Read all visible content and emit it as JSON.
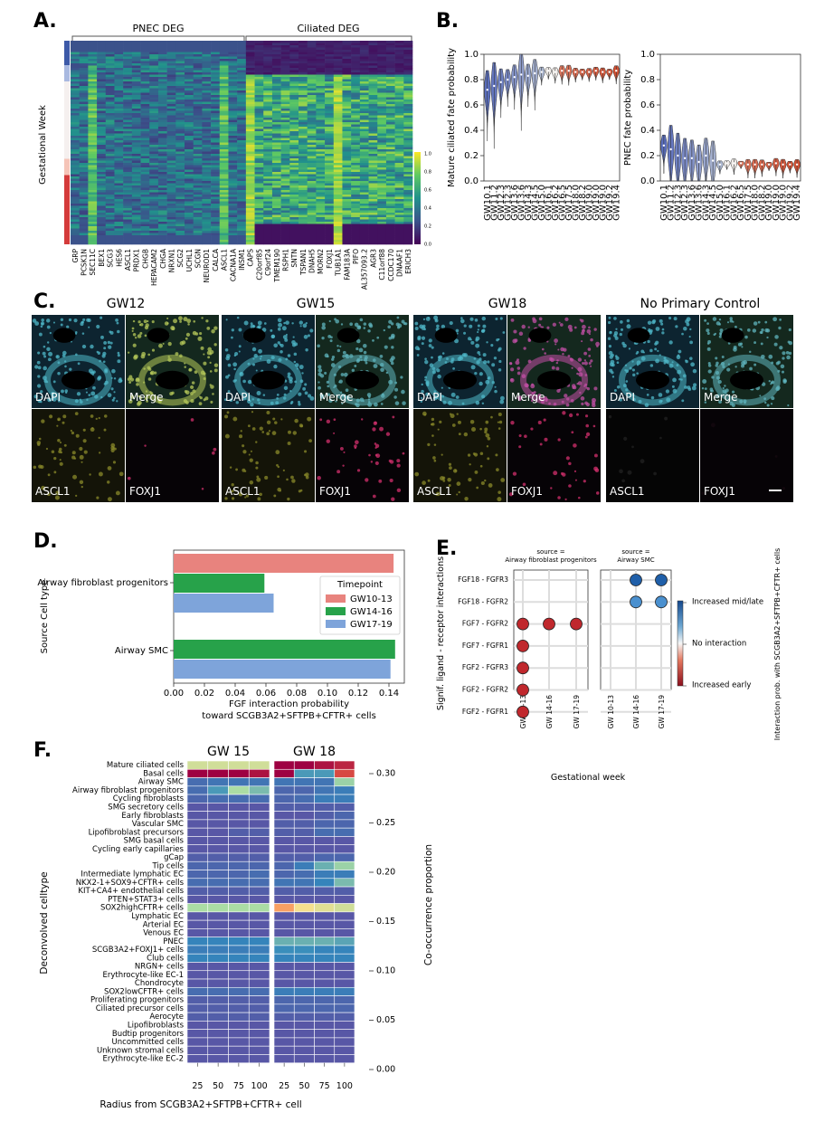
{
  "panelA": {
    "label": "A.",
    "pnec_header": "PNEC DEG",
    "ciliated_header": "Ciliated DEG",
    "ylabel": "Gestational Week",
    "genes": [
      "GRP",
      "PCSK1N",
      "SEC11C",
      "BEX1",
      "SCG3",
      "HES6",
      "ASCL1",
      "PRDX1",
      "CHGB",
      "HEPACAM2",
      "CHGA",
      "NRXN1",
      "SCG2",
      "UCHL1",
      "SCGN",
      "NEUROD1",
      "CALCA",
      "ASCL1",
      "CACNA1A",
      "INSM1",
      "CAPS",
      "C20orf85",
      "C9orf24",
      "TMEM190",
      "RSPH1",
      "SNTN",
      "TSPAN1",
      "DNAH5",
      "MORN2",
      "FOXJ1",
      "TUB1A1",
      "FAM183A",
      "PIFO",
      "AL357093.2",
      "AGR3",
      "C11orf88",
      "CCDC170",
      "DNAAF1",
      "ERICH3"
    ],
    "colorbar_ticks": [
      "1.0",
      "0.8",
      "0.6",
      "0.4",
      "0.2",
      "0.0"
    ]
  },
  "panelB": {
    "label": "B.",
    "categories": [
      "GW10.1",
      "GW11.2",
      "GW12.3",
      "GW12.3",
      "GW13.6",
      "GW13.6",
      "GW14.3",
      "GW14.5",
      "GW15.0",
      "GW16.1",
      "GW16.2",
      "GW16.5",
      "GW17.5",
      "GW18.0",
      "GW18.2",
      "GW19.0",
      "GW19.0",
      "GW19.0",
      "GW19.2",
      "GW19.4"
    ],
    "left": {
      "ylabel": "Mature ciliated fate probability",
      "yticks": [
        "0.0",
        "0.2",
        "0.4",
        "0.6",
        "0.8",
        "1.0"
      ],
      "medians": [
        0.72,
        0.75,
        0.78,
        0.8,
        0.82,
        0.84,
        0.83,
        0.85,
        0.86,
        0.87,
        0.86,
        0.87,
        0.87,
        0.86,
        0.86,
        0.86,
        0.87,
        0.86,
        0.86,
        0.87
      ]
    },
    "right": {
      "ylabel": "PNEC fate probability",
      "yticks": [
        "0.0",
        "0.2",
        "0.4",
        "0.6",
        "0.8",
        "1.0"
      ],
      "medians": [
        0.28,
        0.25,
        0.2,
        0.18,
        0.18,
        0.15,
        0.2,
        0.16,
        0.13,
        0.14,
        0.14,
        0.14,
        0.13,
        0.13,
        0.13,
        0.13,
        0.14,
        0.13,
        0.13,
        0.13
      ]
    }
  },
  "panelC": {
    "label": "C.",
    "groups": [
      {
        "title": "GW12",
        "tl": "DAPI",
        "tr": "Merge",
        "bl": "ASCL1",
        "br": "FOXJ1"
      },
      {
        "title": "GW15",
        "tl": "DAPI",
        "tr": "Merge",
        "bl": "ASCL1",
        "br": "FOXJ1"
      },
      {
        "title": "GW18",
        "tl": "DAPI",
        "tr": "Merge",
        "bl": "ASCL1",
        "br": "FOXJ1"
      },
      {
        "title": "No Primary Control",
        "tl": "DAPI",
        "tr": "Merge",
        "bl": "ASCL1",
        "br": "FOXJ1"
      }
    ]
  },
  "chart_data": [
    {
      "type": "bar",
      "panel": "D.",
      "orientation": "horizontal",
      "categories": [
        "Airway fibroblast progenitors",
        "Airway SMC"
      ],
      "series": [
        {
          "name": "GW10-13",
          "color": "#e8837e",
          "values": [
            0.143,
            null
          ]
        },
        {
          "name": "GW14-16",
          "color": "#27a24a",
          "values": [
            0.059,
            0.144
          ]
        },
        {
          "name": "GW17-19",
          "color": "#7ea4da",
          "values": [
            0.065,
            0.141
          ]
        }
      ],
      "ylabel": "Source Cell type",
      "xlabel": "FGF interaction probability",
      "xlabel2": "toward SCGB3A2+SFTPB+CFTR+ cells",
      "xlim": [
        0,
        0.15
      ],
      "xticks": [
        "0.00",
        "0.02",
        "0.04",
        "0.06",
        "0.08",
        "0.10",
        "0.12",
        "0.14"
      ],
      "legend_title": "Timepoint",
      "legend_position": "center-right"
    },
    {
      "type": "scatter",
      "panel": "E.",
      "facets": [
        {
          "title": "source =\nAirway fibroblast progenitors",
          "points": [
            {
              "x": "GW 10-13",
              "y": "FGF7 - FGFR2",
              "value": -1.0
            },
            {
              "x": "GW 14-16",
              "y": "FGF7 - FGFR2",
              "value": -1.0
            },
            {
              "x": "GW 17-19",
              "y": "FGF7 - FGFR2",
              "value": -1.0
            },
            {
              "x": "GW 10-13",
              "y": "FGF7 - FGFR1",
              "value": -1.0
            },
            {
              "x": "GW 10-13",
              "y": "FGF2 - FGFR3",
              "value": -1.0
            },
            {
              "x": "GW 10-13",
              "y": "FGF2 - FGFR2",
              "value": -1.0
            },
            {
              "x": "GW 10-13",
              "y": "FGF2 - FGFR1",
              "value": -1.0
            }
          ]
        },
        {
          "title": "source =\nAirway SMC",
          "points": [
            {
              "x": "GW 14-16",
              "y": "FGF18 - FGFR3",
              "value": 1.0
            },
            {
              "x": "GW 17-19",
              "y": "FGF18 - FGFR3",
              "value": 1.0
            },
            {
              "x": "GW 14-16",
              "y": "FGF18 - FGFR2",
              "value": 0.6
            },
            {
              "x": "GW 17-19",
              "y": "FGF18 - FGFR2",
              "value": 0.6
            }
          ]
        }
      ],
      "y_categories": [
        "FGF18 - FGFR3",
        "FGF18 - FGFR2",
        "FGF7 - FGFR2",
        "FGF7 - FGFR1",
        "FGF2 - FGFR3",
        "FGF2 - FGFR2",
        "FGF2 - FGFR1"
      ],
      "x_categories": [
        "GW 10-13",
        "GW 14-16",
        "GW 17-19"
      ],
      "xlabel": "Gestational week",
      "ylabel": "Signif. ligand - receptor interactions",
      "colorbar_labels": [
        "Increased mid/late",
        "No interaction",
        "Increased early"
      ],
      "colorbar_title": "Interaction prob. with SCGB3A2+SFTPB+CFTR+ cells"
    },
    {
      "type": "heatmap",
      "panel": "F.",
      "groups": [
        "GW 15",
        "GW 18"
      ],
      "x": [
        "25",
        "50",
        "75",
        "100"
      ],
      "rows": [
        "Mature ciliated cells",
        "Basal cells",
        "Airway SMC",
        "Airway fibroblast progenitors",
        "Cycling fibroblasts",
        "SMG secretory cells",
        "Early fibroblasts",
        "Vascular SMC",
        "Lipofibroblast precursors",
        "SMG basal cells",
        "Cycling early capillaries",
        "gCap",
        "Tip cells",
        "Intermediate lymphatic EC",
        "NKX2-1+SOX9+CFTR+ cells",
        "KIT+CA4+ endothelial cells",
        "PTEN+STAT3+ cells",
        "SOX2highCFTR+ cells",
        "Lymphatic EC",
        "Arterial EC",
        "Venous EC",
        "PNEC",
        "SCGB3A2+FOXJ1+ cells",
        "Club cells",
        "NRGN+ cells",
        "Erythrocyte-like EC-1",
        "Chondrocyte",
        "SOX2lowCFTR+ cells",
        "Proliferating progenitors",
        "Ciliated precursor cells",
        "Aerocyte",
        "Lipofibroblasts",
        "Budtip progenitors",
        "Uncommitted cells",
        "Unknown stromal cells",
        "Erythrocyte-like EC-2"
      ],
      "values_gw15": [
        [
          0.17,
          0.17,
          0.17,
          0.17
        ],
        [
          0.3,
          0.3,
          0.3,
          0.29
        ],
        [
          0.04,
          0.05,
          0.05,
          0.05
        ],
        [
          0.04,
          0.09,
          0.15,
          0.12
        ],
        [
          0.03,
          0.04,
          0.04,
          0.04
        ],
        [
          0.01,
          0.01,
          0.01,
          0.01
        ],
        [
          0.01,
          0.01,
          0.01,
          0.01
        ],
        [
          0.01,
          0.01,
          0.01,
          0.01
        ],
        [
          0.01,
          0.01,
          0.02,
          0.02
        ],
        [
          0.01,
          0.01,
          0.01,
          0.01
        ],
        [
          0.01,
          0.01,
          0.01,
          0.01
        ],
        [
          0.02,
          0.02,
          0.02,
          0.02
        ],
        [
          0.03,
          0.03,
          0.03,
          0.03
        ],
        [
          0.03,
          0.03,
          0.03,
          0.04
        ],
        [
          0.04,
          0.04,
          0.04,
          0.04
        ],
        [
          0.02,
          0.02,
          0.02,
          0.02
        ],
        [
          0.01,
          0.01,
          0.01,
          0.01
        ],
        [
          0.15,
          0.15,
          0.15,
          0.15
        ],
        [
          0.01,
          0.01,
          0.01,
          0.01
        ],
        [
          0.01,
          0.01,
          0.01,
          0.01
        ],
        [
          0.01,
          0.01,
          0.01,
          0.01
        ],
        [
          0.07,
          0.07,
          0.07,
          0.07
        ],
        [
          0.06,
          0.06,
          0.06,
          0.06
        ],
        [
          0.07,
          0.07,
          0.07,
          0.07
        ],
        [
          0.01,
          0.01,
          0.01,
          0.01
        ],
        [
          0.01,
          0.01,
          0.01,
          0.01
        ],
        [
          0.01,
          0.01,
          0.01,
          0.01
        ],
        [
          0.04,
          0.04,
          0.04,
          0.04
        ],
        [
          0.02,
          0.02,
          0.02,
          0.02
        ],
        [
          0.02,
          0.02,
          0.02,
          0.02
        ],
        [
          0.02,
          0.02,
          0.02,
          0.02
        ],
        [
          0.01,
          0.01,
          0.01,
          0.01
        ],
        [
          0.01,
          0.01,
          0.01,
          0.01
        ],
        [
          0.01,
          0.01,
          0.01,
          0.01
        ],
        [
          0.01,
          0.01,
          0.01,
          0.01
        ],
        [
          0.01,
          0.01,
          0.01,
          0.01
        ]
      ],
      "values_gw18": [
        [
          0.3,
          0.3,
          0.29,
          0.28
        ],
        [
          0.3,
          0.09,
          0.09,
          0.26
        ],
        [
          0.05,
          0.05,
          0.05,
          0.14
        ],
        [
          0.03,
          0.03,
          0.05,
          0.06
        ],
        [
          0.03,
          0.04,
          0.06,
          0.06
        ],
        [
          0.02,
          0.02,
          0.02,
          0.02
        ],
        [
          0.01,
          0.01,
          0.02,
          0.03
        ],
        [
          0.02,
          0.02,
          0.03,
          0.03
        ],
        [
          0.02,
          0.02,
          0.04,
          0.04
        ],
        [
          0.01,
          0.01,
          0.01,
          0.01
        ],
        [
          0.01,
          0.01,
          0.01,
          0.01
        ],
        [
          0.02,
          0.02,
          0.03,
          0.03
        ],
        [
          0.03,
          0.06,
          0.11,
          0.14
        ],
        [
          0.03,
          0.04,
          0.06,
          0.06
        ],
        [
          0.05,
          0.05,
          0.07,
          0.12
        ],
        [
          0.02,
          0.02,
          0.02,
          0.02
        ],
        [
          0.01,
          0.01,
          0.01,
          0.01
        ],
        [
          0.22,
          0.19,
          0.18,
          0.17
        ],
        [
          0.01,
          0.01,
          0.01,
          0.01
        ],
        [
          0.01,
          0.01,
          0.01,
          0.01
        ],
        [
          0.01,
          0.01,
          0.01,
          0.01
        ],
        [
          0.11,
          0.11,
          0.11,
          0.1
        ],
        [
          0.08,
          0.08,
          0.07,
          0.07
        ],
        [
          0.07,
          0.07,
          0.07,
          0.07
        ],
        [
          0.01,
          0.01,
          0.01,
          0.01
        ],
        [
          0.01,
          0.01,
          0.01,
          0.01
        ],
        [
          0.01,
          0.01,
          0.01,
          0.01
        ],
        [
          0.06,
          0.06,
          0.06,
          0.06
        ],
        [
          0.03,
          0.03,
          0.03,
          0.03
        ],
        [
          0.03,
          0.03,
          0.03,
          0.03
        ],
        [
          0.02,
          0.02,
          0.02,
          0.02
        ],
        [
          0.01,
          0.01,
          0.01,
          0.01
        ],
        [
          0.01,
          0.01,
          0.01,
          0.01
        ],
        [
          0.01,
          0.01,
          0.01,
          0.01
        ],
        [
          0.01,
          0.01,
          0.01,
          0.01
        ],
        [
          0.01,
          0.01,
          0.01,
          0.01
        ]
      ],
      "xlabel": "Radius from SCGB3A2+SFTPB+CFTR+ cell",
      "ylabel": "Deconvolved celltype",
      "colorbar_label": "Co-occurrence proportion",
      "colorbar_ticks": [
        "0.30",
        "0.25",
        "0.20",
        "0.15",
        "0.10",
        "0.05",
        "0.00"
      ],
      "vmin": 0.0,
      "vmax": 0.3
    }
  ],
  "labels": {
    "d": "D.",
    "e": "E.",
    "f": "F."
  }
}
